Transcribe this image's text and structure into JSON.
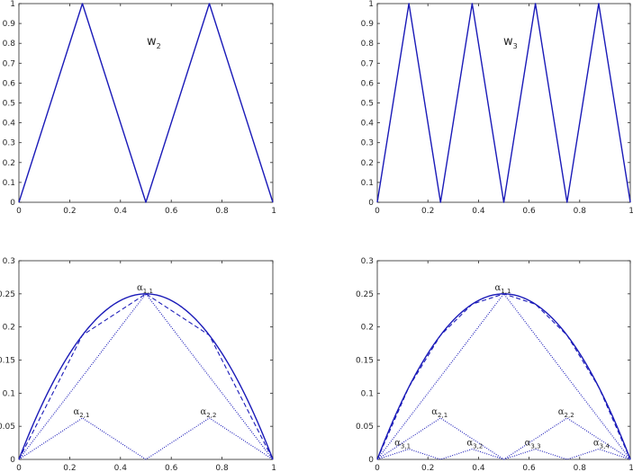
{
  "colors": {
    "series": "#1a1ab8",
    "axis": "#262626"
  },
  "chart_data": [
    {
      "type": "line",
      "title": "w",
      "title_sub": "2",
      "xlim": [
        0,
        1
      ],
      "ylim": [
        0,
        1
      ],
      "xticks": [
        "0",
        "0.2",
        "0.4",
        "0.6",
        "0.8",
        "1"
      ],
      "yticks": [
        "0",
        "0.1",
        "0.2",
        "0.3",
        "0.4",
        "0.5",
        "0.6",
        "0.7",
        "0.8",
        "0.9",
        "1"
      ],
      "grid": false,
      "series": [
        {
          "style": "solid",
          "x": [
            0,
            0.25,
            0.5,
            0.75,
            1
          ],
          "y": [
            0,
            1,
            0,
            1,
            0
          ]
        }
      ]
    },
    {
      "type": "line",
      "title": "w",
      "title_sub": "3",
      "xlim": [
        0,
        1
      ],
      "ylim": [
        0,
        1
      ],
      "xticks": [
        "0",
        "0.2",
        "0.4",
        "0.6",
        "0.8",
        "1"
      ],
      "yticks": [
        "0",
        "0.1",
        "0.2",
        "0.3",
        "0.4",
        "0.5",
        "0.6",
        "0.7",
        "0.8",
        "0.9",
        "1"
      ],
      "grid": false,
      "series": [
        {
          "style": "solid",
          "x": [
            0,
            0.125,
            0.25,
            0.375,
            0.5,
            0.625,
            0.75,
            0.875,
            1
          ],
          "y": [
            0,
            1,
            0,
            1,
            0,
            1,
            0,
            1,
            0
          ]
        }
      ]
    },
    {
      "type": "line",
      "xlim": [
        0,
        1
      ],
      "ylim": [
        0,
        0.3
      ],
      "xticks": [
        "0",
        "0.2",
        "0.4",
        "0.6",
        "0.8",
        "1"
      ],
      "yticks": [
        "0",
        "0.05",
        "0.1",
        "0.15",
        "0.2",
        "0.25",
        "0.3"
      ],
      "grid": false,
      "series": [
        {
          "style": "solid",
          "function": "x(1-x)",
          "x_range": [
            0,
            1
          ]
        },
        {
          "style": "dashed",
          "x": [
            0,
            0.25,
            0.5,
            0.75,
            1
          ],
          "y": [
            0,
            0.1875,
            0.25,
            0.1875,
            0
          ]
        },
        {
          "style": "dotted",
          "x": [
            0,
            0.5,
            1
          ],
          "y": [
            0,
            0.25,
            0
          ]
        },
        {
          "style": "dotted",
          "x": [
            0,
            0.25,
            0.5,
            0.75,
            1
          ],
          "y": [
            0,
            0.0625,
            0,
            0.0625,
            0
          ]
        }
      ],
      "annotations": [
        {
          "text": "α",
          "sub": "1,1",
          "x": 0.5,
          "y": 0.25
        },
        {
          "text": "α",
          "sub": "2,1",
          "x": 0.25,
          "y": 0.0625
        },
        {
          "text": "α",
          "sub": "2,2",
          "x": 0.75,
          "y": 0.0625
        }
      ]
    },
    {
      "type": "line",
      "xlim": [
        0,
        1
      ],
      "ylim": [
        0,
        0.3
      ],
      "xticks": [
        "0",
        "0.2",
        "0.4",
        "0.6",
        "0.8",
        "1"
      ],
      "yticks": [
        "0",
        "0.05",
        "0.1",
        "0.15",
        "0.2",
        "0.25",
        "0.3"
      ],
      "grid": false,
      "series": [
        {
          "style": "solid",
          "function": "x(1-x)",
          "x_range": [
            0,
            1
          ]
        },
        {
          "style": "dashed",
          "x": [
            0,
            0.125,
            0.25,
            0.375,
            0.5,
            0.625,
            0.75,
            0.875,
            1
          ],
          "y": [
            0,
            0.109375,
            0.1875,
            0.234375,
            0.25,
            0.234375,
            0.1875,
            0.109375,
            0
          ]
        },
        {
          "style": "dotted",
          "x": [
            0,
            0.5,
            1
          ],
          "y": [
            0,
            0.25,
            0
          ]
        },
        {
          "style": "dotted",
          "x": [
            0,
            0.25,
            0.5,
            0.75,
            1
          ],
          "y": [
            0,
            0.0625,
            0,
            0.0625,
            0
          ]
        },
        {
          "style": "dotted",
          "x": [
            0,
            0.125,
            0.25,
            0.375,
            0.5,
            0.625,
            0.75,
            0.875,
            1
          ],
          "y": [
            0,
            0.015625,
            0,
            0.015625,
            0,
            0.015625,
            0,
            0.015625,
            0
          ]
        }
      ],
      "annotations": [
        {
          "text": "α",
          "sub": "1,1",
          "x": 0.5,
          "y": 0.25
        },
        {
          "text": "α",
          "sub": "2,1",
          "x": 0.25,
          "y": 0.0625
        },
        {
          "text": "α",
          "sub": "2,2",
          "x": 0.75,
          "y": 0.0625
        },
        {
          "text": "α",
          "sub": "3,1",
          "x": 0.125,
          "y": 0.015625
        },
        {
          "text": "α",
          "sub": "3,2",
          "x": 0.375,
          "y": 0.015625
        },
        {
          "text": "α",
          "sub": "3,3",
          "x": 0.625,
          "y": 0.015625
        },
        {
          "text": "α",
          "sub": "3,4",
          "x": 0.875,
          "y": 0.015625
        }
      ]
    }
  ]
}
